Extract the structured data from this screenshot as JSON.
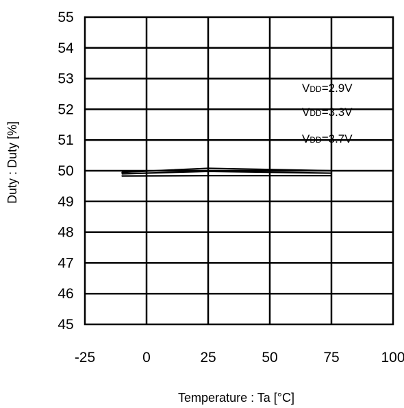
{
  "chart_data": {
    "type": "line",
    "title": "",
    "xlabel": "Temperature : Ta [°C]",
    "ylabel": "Duty : Duty [%]",
    "xlim": [
      -25,
      100
    ],
    "ylim": [
      45,
      55
    ],
    "x_ticks": [
      "-25",
      "0",
      "25",
      "50",
      "75",
      "100"
    ],
    "y_ticks": [
      "45",
      "46",
      "47",
      "48",
      "49",
      "50",
      "51",
      "52",
      "53",
      "54",
      "55"
    ],
    "x_tick_values": [
      -25,
      0,
      25,
      50,
      75,
      100
    ],
    "y_tick_values": [
      45,
      46,
      47,
      48,
      49,
      50,
      51,
      52,
      53,
      54,
      55
    ],
    "grid": true,
    "legend_placement": "right",
    "series": [
      {
        "legend_main": "V",
        "legend_sub": "DD",
        "legend_value": "=2.9V",
        "x": [
          -10,
          25,
          75
        ],
        "y": [
          49.95,
          50.08,
          50.0
        ]
      },
      {
        "legend_main": "V",
        "legend_sub": "DD",
        "legend_value": "=3.3V",
        "x": [
          -10,
          25,
          75
        ],
        "y": [
          49.9,
          49.98,
          49.92
        ]
      },
      {
        "legend_main": "V",
        "legend_sub": "DD",
        "legend_value": "=3.7V",
        "x": [
          -10,
          25,
          75
        ],
        "y": [
          49.83,
          49.84,
          49.84
        ]
      }
    ]
  }
}
